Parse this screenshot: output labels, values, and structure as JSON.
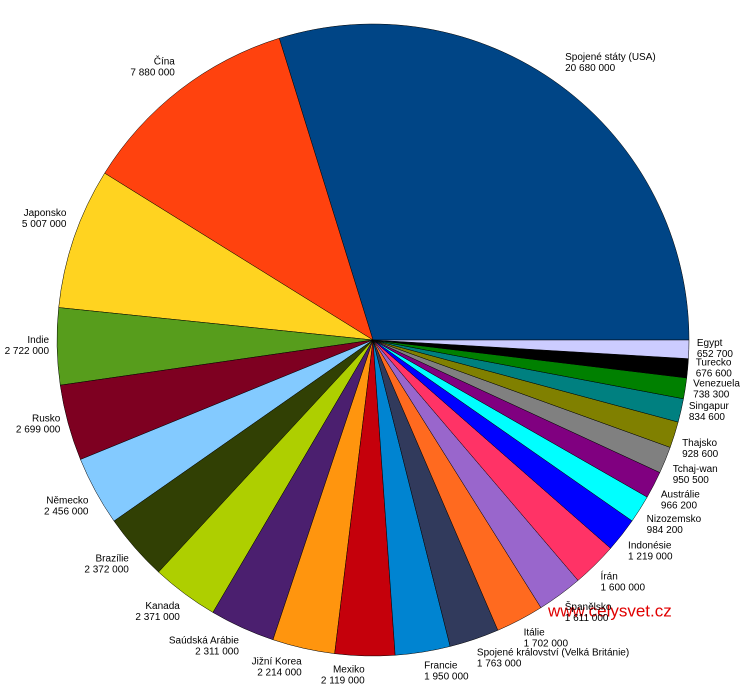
{
  "chart_data": {
    "type": "pie",
    "categories": [
      "Spojené státy (USA)",
      "Čína",
      "Japonsko",
      "Indie",
      "Rusko",
      "Německo",
      "Brazílie",
      "Kanada",
      "Saúdská Arábie",
      "Jižní Korea",
      "Mexiko",
      "Francie",
      "Spojené království (Velká Británie)",
      "Itálie",
      "Španělsko",
      "Írán",
      "Indonésie",
      "Nizozemsko",
      "Austrálie",
      "Tchaj-wan",
      "Thajsko",
      "Singapur",
      "Venezuela",
      "Turecko",
      "Egypt"
    ],
    "values": [
      20680000,
      7880000,
      5007000,
      2722000,
      2699000,
      2456000,
      2372000,
      2371000,
      2311000,
      2214000,
      2119000,
      1950000,
      1763000,
      1702000,
      1611000,
      1600000,
      1219000,
      984200,
      966200,
      950500,
      928600,
      834600,
      738300,
      676600,
      652700
    ],
    "value_labels": [
      "20 680 000",
      "7 880 000",
      "5 007 000",
      "2 722 000",
      "2 699 000",
      "2 456 000",
      "2 372 000",
      "2 371 000",
      "2 311 000",
      "2 214 000",
      "2 119 000",
      "1 950 000",
      "1 763 000",
      "1 702 000",
      "1 611 000",
      "1 600 000",
      "1 219 000",
      "984 200",
      "966 200",
      "950 500",
      "928 600",
      "834 600",
      "738 300",
      "676 600",
      "652 700"
    ],
    "colors": [
      "#004586",
      "#ff420e",
      "#ffd320",
      "#579d1c",
      "#7e0021",
      "#83caff",
      "#314004",
      "#aecf00",
      "#4b1f6f",
      "#ff950e",
      "#c5000b",
      "#0084d1",
      "#313a5c",
      "#ff6a1f",
      "#9966cc",
      "#ff3366",
      "#0000ff",
      "#00ffff",
      "#800080",
      "#808080",
      "#808000",
      "#008080",
      "#008000",
      "#000000",
      "#ccccff"
    ],
    "watermark": "www.celysvet.cz"
  }
}
